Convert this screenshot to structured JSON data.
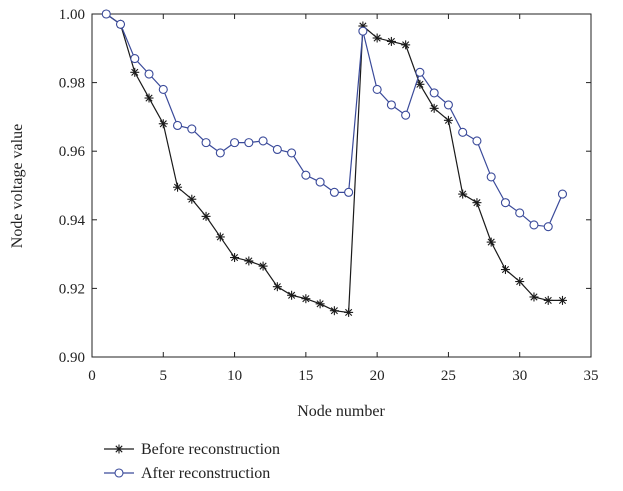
{
  "chart_data": {
    "type": "line",
    "title": "",
    "xlabel": "Node number",
    "ylabel": "Node voltage value",
    "xlim": [
      0,
      35
    ],
    "ylim": [
      0.9,
      1.0
    ],
    "xticks": [
      "0",
      "5",
      "10",
      "15",
      "20",
      "25",
      "30",
      "35"
    ],
    "yticks": [
      "0.90",
      "0.92",
      "0.94",
      "0.96",
      "0.98",
      "1.00"
    ],
    "grid": false,
    "legend_position": "bottom",
    "x": [
      1,
      2,
      3,
      4,
      5,
      6,
      7,
      8,
      9,
      10,
      11,
      12,
      13,
      14,
      15,
      16,
      17,
      18,
      19,
      20,
      21,
      22,
      23,
      24,
      25,
      26,
      27,
      28,
      29,
      30,
      31,
      32,
      33
    ],
    "series": [
      {
        "name": "Before reconstruction",
        "color": "#1a1a1a",
        "marker": "asterisk",
        "values": [
          1.0,
          0.997,
          0.983,
          0.9755,
          0.968,
          0.9495,
          0.946,
          0.941,
          0.935,
          0.929,
          0.928,
          0.9265,
          0.9205,
          0.918,
          0.917,
          0.9155,
          0.9135,
          0.913,
          0.9965,
          0.993,
          0.992,
          0.991,
          0.9795,
          0.9725,
          0.969,
          0.9475,
          0.945,
          0.9335,
          0.9255,
          0.922,
          0.9175,
          0.9165,
          0.9165
        ]
      },
      {
        "name": "After reconstruction",
        "color": "#3a4a9a",
        "marker": "circle",
        "values": [
          1.0,
          0.997,
          0.987,
          0.9825,
          0.978,
          0.9675,
          0.9665,
          0.9625,
          0.9595,
          0.9625,
          0.9625,
          0.963,
          0.9605,
          0.9595,
          0.953,
          0.951,
          0.948,
          0.948,
          0.995,
          0.978,
          0.9735,
          0.9705,
          0.983,
          0.977,
          0.9735,
          0.9655,
          0.963,
          0.9525,
          0.945,
          0.942,
          0.9385,
          0.938,
          0.9475
        ]
      }
    ]
  }
}
